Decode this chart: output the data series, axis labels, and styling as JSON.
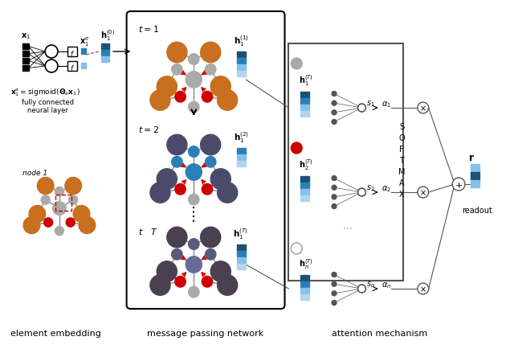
{
  "title": "",
  "bg_color": "#ffffff",
  "label_element_embedding": "element embedding",
  "label_message_passing": "message passing network",
  "label_attention": "attention mechanism",
  "label_readout": "readout",
  "blue_dark": "#1a5276",
  "blue_mid": "#2980b9",
  "blue_light": "#85c1e9",
  "blue_lighter": "#aed6f1",
  "brown": "#a04010",
  "red": "#cc0000",
  "gray_dark": "#555555",
  "gray_node": "#aaaaaa",
  "gray_light": "#dddddd",
  "orange_brown": "#c87020"
}
